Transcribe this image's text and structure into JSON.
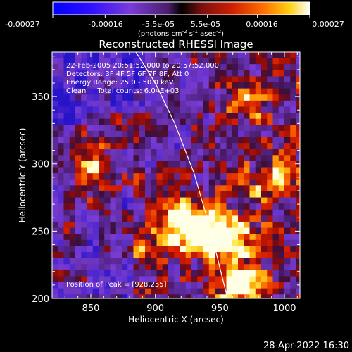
{
  "colorbar": {
    "tick_labels": [
      "-0.00027",
      "-0.00016",
      "-5.5e-05",
      "5.5e-05",
      "0.00016",
      "0.00027"
    ],
    "unit_label_parts": {
      "a": "(photons cm",
      "b": "-2",
      "c": " s",
      "d": "-1",
      "e": " asec",
      "f": "-2",
      "g": ")"
    },
    "range": [
      -0.00027,
      0.00027
    ]
  },
  "chart_data": {
    "type": "heatmap",
    "title": "Reconstructed RHESSI Image",
    "xlabel": "Heliocentric X (arcsec)",
    "ylabel": "Heliocentric Y (arcsec)",
    "xlim": [
      820,
      1012
    ],
    "ylim": [
      200,
      383
    ],
    "x_ticks": [
      850,
      900,
      950,
      1000
    ],
    "y_ticks": [
      200,
      250,
      300,
      350
    ],
    "annotations": [
      "22-Feb-2005 20:51:52.000 to 20:57:52.000",
      "Detectors: 3F 4F 5F 6F 7F 8F, Att 0",
      "Energy Range: 25.0 - 50.0 keV",
      "Clean     Total counts: 6.04E+03"
    ],
    "peak_label": "Position of Peak = [928,255]",
    "peak_position": [
      928,
      255
    ],
    "limb_points": [
      [
        885,
        383
      ],
      [
        900,
        360
      ],
      [
        915,
        330
      ],
      [
        930,
        293
      ],
      [
        943,
        250
      ],
      [
        952,
        215
      ],
      [
        956,
        200
      ]
    ],
    "bright_regions": [
      {
        "x": 928,
        "y": 255,
        "value": 1.0
      },
      {
        "x": 935,
        "y": 245,
        "value": 0.85
      },
      {
        "x": 915,
        "y": 265,
        "value": 0.75
      },
      {
        "x": 960,
        "y": 215,
        "value": 0.8
      },
      {
        "x": 955,
        "y": 245,
        "value": 0.7
      },
      {
        "x": 845,
        "y": 310,
        "value": 0.65
      },
      {
        "x": 855,
        "y": 290,
        "value": 0.6
      },
      {
        "x": 880,
        "y": 335,
        "value": 0.55
      },
      {
        "x": 988,
        "y": 290,
        "value": 0.6
      },
      {
        "x": 975,
        "y": 350,
        "value": 0.55
      },
      {
        "x": 895,
        "y": 240,
        "value": 0.5
      }
    ]
  },
  "footer": {
    "timestamp": "28-Apr-2022 16:30"
  }
}
